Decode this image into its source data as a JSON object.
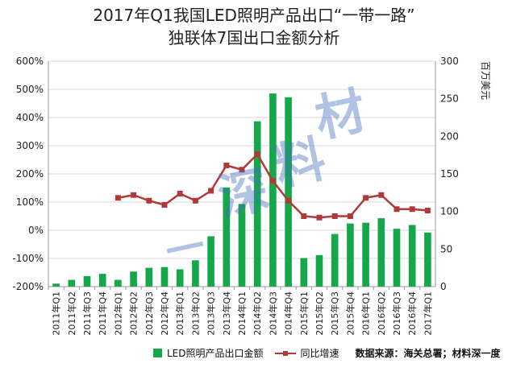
{
  "chart_data": {
    "type": "bar",
    "title": "2017年Q1我国LED照明产品出口“一带一路”",
    "subtitle": "独联体7国出口金额分析",
    "categories": [
      "2011年Q1",
      "2011年Q2",
      "2011年Q3",
      "2011年Q4",
      "2012年Q1",
      "2012年Q2",
      "2012年Q3",
      "2012年Q4",
      "2013年Q1",
      "2013年Q2",
      "2013年Q3",
      "2013年Q4",
      "2014年Q1",
      "2014年Q2",
      "2014年Q3",
      "2014年Q4",
      "2015年Q1",
      "2015年Q2",
      "2015年Q3",
      "2015年Q4",
      "2016年Q1",
      "2016年Q2",
      "2016年Q3",
      "2016年Q4",
      "2017年Q1"
    ],
    "y_left": {
      "ticks": [
        "-200%",
        "-100%",
        "0%",
        "100%",
        "200%",
        "300%",
        "400%",
        "500%",
        "600%"
      ],
      "range": [
        -200,
        600
      ]
    },
    "y_right": {
      "label": "百万美元",
      "ticks": [
        "0",
        "50",
        "100",
        "150",
        "200",
        "250",
        "300"
      ],
      "range": [
        0,
        300
      ]
    },
    "series": [
      {
        "name": "LED照明产品出口金额",
        "type": "bar",
        "axis": "right",
        "color": "#14a84a",
        "values": [
          4,
          9,
          14,
          17,
          9,
          20,
          25,
          26,
          23,
          35,
          67,
          132,
          110,
          220,
          257,
          252,
          38,
          42,
          70,
          84,
          85,
          91,
          77,
          82,
          72
        ]
      },
      {
        "name": "同比增速",
        "type": "line",
        "axis": "left",
        "color": "#b03a3a",
        "values": [
          null,
          null,
          null,
          null,
          115,
          125,
          105,
          90,
          130,
          105,
          140,
          230,
          215,
          270,
          175,
          105,
          50,
          45,
          50,
          50,
          115,
          125,
          75,
          75,
          70
        ]
      }
    ],
    "grid": true,
    "legend_position": "bottom"
  },
  "legend": {
    "bar_label": "LED照明产品出口金额",
    "line_label": "同比增速",
    "source": "数据来源：海关总署；材料深一度"
  },
  "watermark": [
    "材",
    "料",
    "深",
    "一",
    "度"
  ],
  "colors": {
    "bar": "#14a84a",
    "line": "#b03a3a",
    "grid": "#d9d9d9"
  }
}
